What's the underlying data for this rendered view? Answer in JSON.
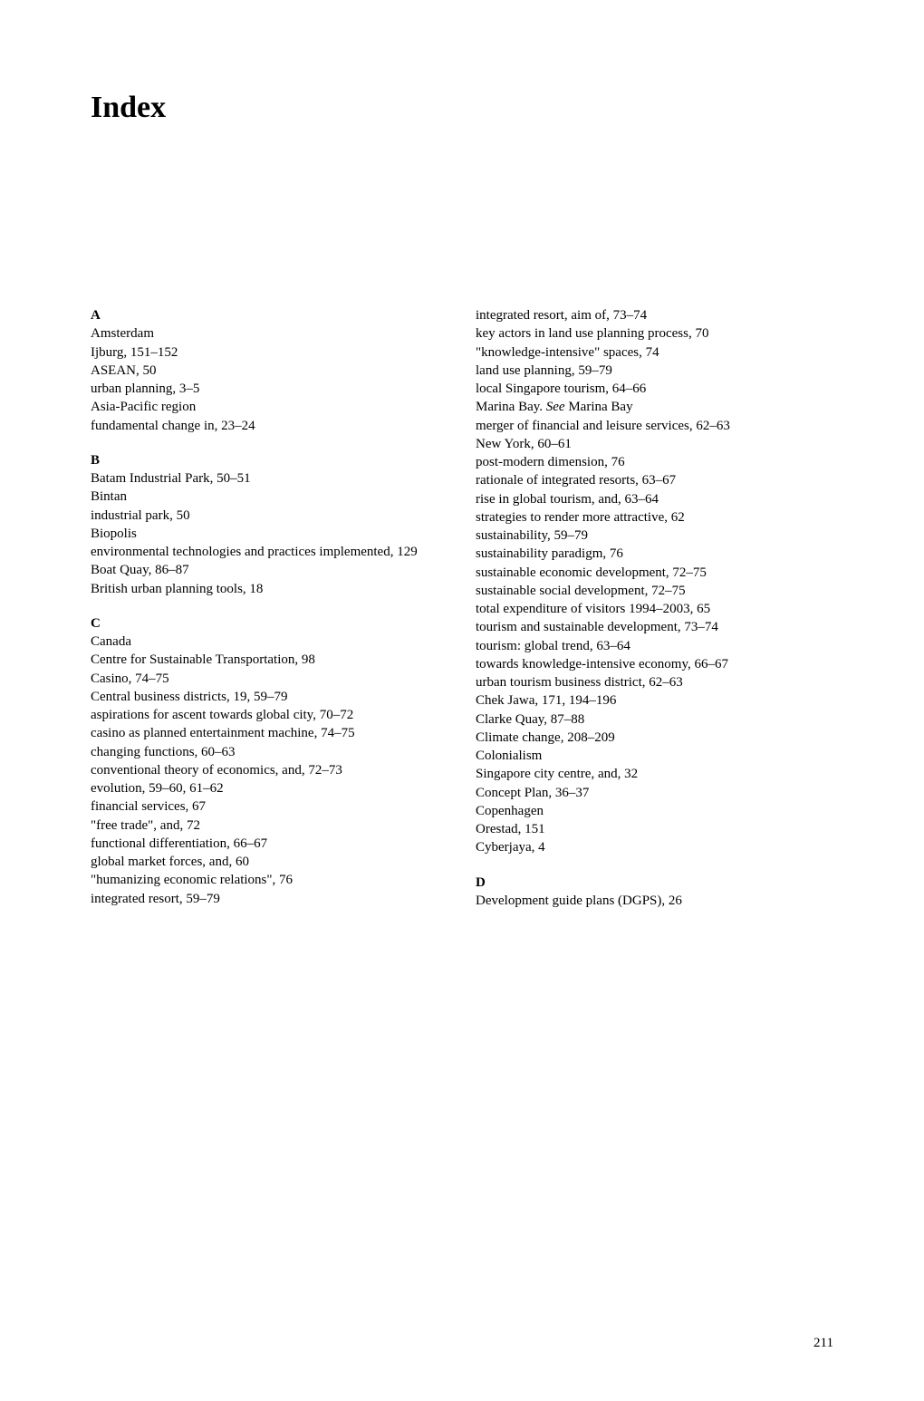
{
  "title": "Index",
  "pageNumber": "211",
  "left": {
    "sections": [
      {
        "head": "A",
        "entries": [
          {
            "text": "Amsterdam",
            "level": 0
          },
          {
            "text": "Ijburg, 151–152",
            "level": 1
          },
          {
            "text": "ASEAN, 50",
            "level": 0
          },
          {
            "text": "urban planning, 3–5",
            "level": 1
          },
          {
            "text": "Asia-Pacific region",
            "level": 0
          },
          {
            "text": "fundamental change in, 23–24",
            "level": 1
          }
        ]
      },
      {
        "head": "B",
        "entries": [
          {
            "text": "Batam Industrial Park, 50–51",
            "level": 0
          },
          {
            "text": "Bintan",
            "level": 0
          },
          {
            "text": "industrial park, 50",
            "level": 1
          },
          {
            "text": "Biopolis",
            "level": 0
          },
          {
            "text": "environmental technologies and practices implemented, 129",
            "level": 1
          },
          {
            "text": "Boat Quay, 86–87",
            "level": 0
          },
          {
            "text": "British urban planning tools, 18",
            "level": 0
          }
        ]
      },
      {
        "head": "C",
        "entries": [
          {
            "text": "Canada",
            "level": 0
          },
          {
            "text": "Centre for Sustainable Transportation, 98",
            "level": 1
          },
          {
            "text": "Casino, 74–75",
            "level": 0
          },
          {
            "text": "Central business districts, 19, 59–79",
            "level": 0
          },
          {
            "text": "aspirations for ascent towards global city, 70–72",
            "level": 1
          },
          {
            "text": "casino as planned entertainment machine, 74–75",
            "level": 1
          },
          {
            "text": "changing functions, 60–63",
            "level": 1
          },
          {
            "text": "conventional theory of economics, and, 72–73",
            "level": 1
          },
          {
            "text": "evolution, 59–60, 61–62",
            "level": 1
          },
          {
            "text": "financial services, 67",
            "level": 1
          },
          {
            "text": "\"free trade\", and, 72",
            "level": 1
          },
          {
            "text": "functional differentiation, 66–67",
            "level": 1
          },
          {
            "text": "global market forces, and, 60",
            "level": 1
          },
          {
            "text": "\"humanizing economic relations\", 76",
            "level": 1
          },
          {
            "text": "integrated resort, 59–79",
            "level": 1
          }
        ]
      }
    ]
  },
  "right": {
    "continuation": [
      {
        "text": "integrated resort, aim of, 73–74",
        "level": 1
      },
      {
        "text": "key actors in land use planning process, 70",
        "level": 1
      },
      {
        "text": "\"knowledge-intensive\" spaces, 74",
        "level": 1
      },
      {
        "text": "land use planning, 59–79",
        "level": 1
      },
      {
        "text": "local Singapore tourism, 64–66",
        "level": 1
      },
      {
        "text": "Marina Bay. ",
        "level": 1,
        "seeRef": "See",
        "seeTarget": " Marina Bay"
      },
      {
        "text": "merger of financial and leisure services, 62–63",
        "level": 1
      },
      {
        "text": "New York, 60–61",
        "level": 1
      },
      {
        "text": "post-modern dimension, 76",
        "level": 1
      },
      {
        "text": "rationale of integrated resorts, 63–67",
        "level": 1
      },
      {
        "text": "rise in global tourism, and, 63–64",
        "level": 1
      },
      {
        "text": "strategies to render more attractive, 62",
        "level": 1
      },
      {
        "text": "sustainability, 59–79",
        "level": 1
      },
      {
        "text": "sustainability paradigm, 76",
        "level": 1
      },
      {
        "text": "sustainable economic development, 72–75",
        "level": 1
      },
      {
        "text": "sustainable social development, 72–75",
        "level": 1
      },
      {
        "text": "total expenditure of visitors 1994–2003, 65",
        "level": 1
      },
      {
        "text": "tourism and sustainable development, 73–74",
        "level": 1
      },
      {
        "text": "tourism: global trend, 63–64",
        "level": 1
      },
      {
        "text": "towards knowledge-intensive economy, 66–67",
        "level": 1
      },
      {
        "text": "urban tourism business district, 62–63",
        "level": 1
      }
    ],
    "afterCont": [
      {
        "text": "Chek Jawa, 171, 194–196",
        "level": 0
      },
      {
        "text": "Clarke Quay, 87–88",
        "level": 0
      },
      {
        "text": "Climate change, 208–209",
        "level": 0
      },
      {
        "text": "Colonialism",
        "level": 0
      },
      {
        "text": "Singapore city centre, and, 32",
        "level": 1
      },
      {
        "text": "Concept Plan, 36–37",
        "level": 0
      },
      {
        "text": "Copenhagen",
        "level": 0
      },
      {
        "text": "Orestad, 151",
        "level": 1
      },
      {
        "text": "Cyberjaya, 4",
        "level": 0
      }
    ],
    "sections": [
      {
        "head": "D",
        "entries": [
          {
            "text": "Development guide plans (DGPS), 26",
            "level": 0
          }
        ]
      }
    ]
  }
}
